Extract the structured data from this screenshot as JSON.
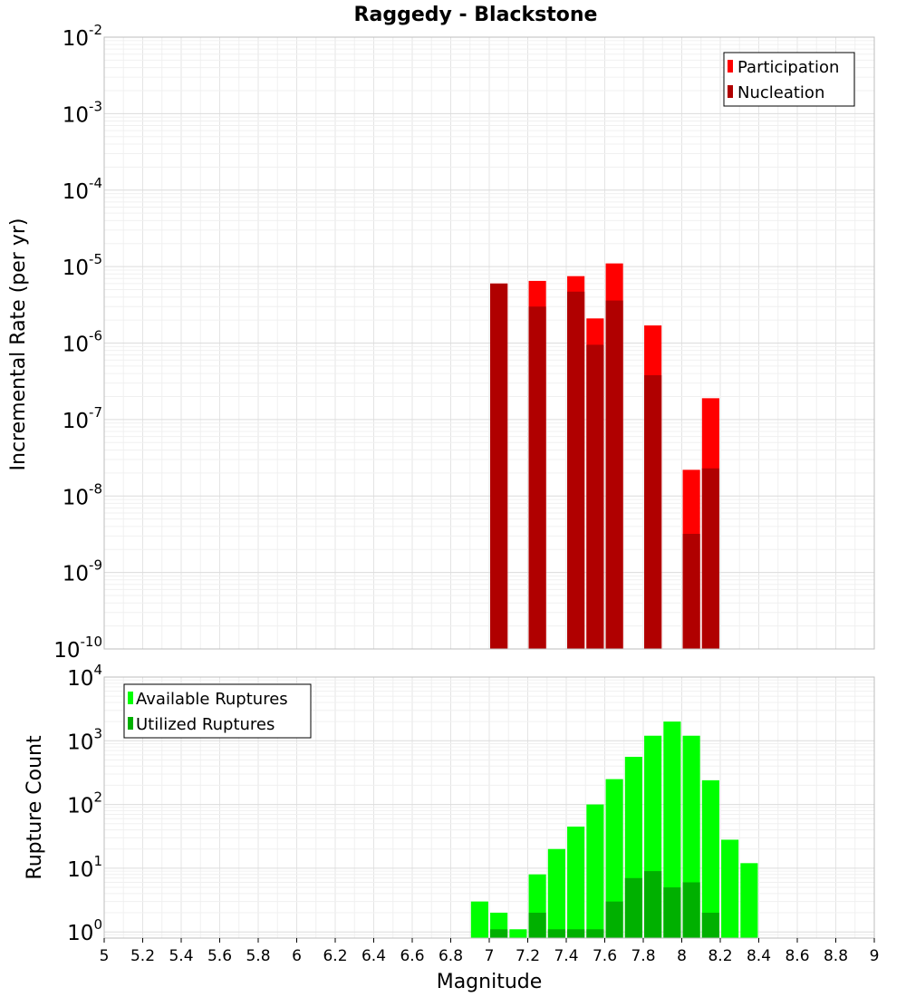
{
  "chart_data": [
    {
      "type": "bar",
      "title": "Raggedy - Blackstone",
      "xlabel": "",
      "ylabel": "Incremental Rate (per yr)",
      "yscale": "log",
      "ylim": [
        1e-10,
        0.01
      ],
      "xlim": [
        5,
        9
      ],
      "y_ticks": [
        {
          "base": "10",
          "exp": "-10",
          "value": 1e-10
        },
        {
          "base": "10",
          "exp": "-9",
          "value": 1e-09
        },
        {
          "base": "10",
          "exp": "-8",
          "value": 1e-08
        },
        {
          "base": "10",
          "exp": "-7",
          "value": 1e-07
        },
        {
          "base": "10",
          "exp": "-6",
          "value": 1e-06
        },
        {
          "base": "10",
          "exp": "-5",
          "value": 1e-05
        },
        {
          "base": "10",
          "exp": "-4",
          "value": 0.0001
        },
        {
          "base": "10",
          "exp": "-3",
          "value": 0.001
        },
        {
          "base": "10",
          "exp": "-2",
          "value": 0.01
        }
      ],
      "bar_width": 0.09,
      "legend": {
        "position": "top-right"
      },
      "series": [
        {
          "name": "Participation",
          "color": "#ff0000",
          "points": [
            {
              "x": 7.05,
              "y": 6e-06
            },
            {
              "x": 7.25,
              "y": 6.5e-06
            },
            {
              "x": 7.45,
              "y": 7.5e-06
            },
            {
              "x": 7.55,
              "y": 2.1e-06
            },
            {
              "x": 7.65,
              "y": 1.1e-05
            },
            {
              "x": 7.85,
              "y": 1.7e-06
            },
            {
              "x": 8.05,
              "y": 2.2e-08
            },
            {
              "x": 8.15,
              "y": 1.9e-07
            }
          ]
        },
        {
          "name": "Nucleation",
          "color": "#b00000",
          "points": [
            {
              "x": 7.05,
              "y": 6e-06
            },
            {
              "x": 7.25,
              "y": 3e-06
            },
            {
              "x": 7.45,
              "y": 4.7e-06
            },
            {
              "x": 7.55,
              "y": 9.5e-07
            },
            {
              "x": 7.65,
              "y": 3.6e-06
            },
            {
              "x": 7.85,
              "y": 3.8e-07
            },
            {
              "x": 8.05,
              "y": 3.2e-09
            },
            {
              "x": 8.15,
              "y": 2.3e-08
            }
          ]
        }
      ]
    },
    {
      "type": "bar",
      "title": "",
      "xlabel": "Magnitude",
      "ylabel": "Rupture Count",
      "yscale": "log",
      "ylim": [
        0.8,
        10000
      ],
      "xlim": [
        5,
        9
      ],
      "x_ticks": [
        "5",
        "5.2",
        "5.4",
        "5.6",
        "5.8",
        "6",
        "6.2",
        "6.4",
        "6.6",
        "6.8",
        "7",
        "7.2",
        "7.4",
        "7.6",
        "7.8",
        "8",
        "8.2",
        "8.4",
        "8.6",
        "8.8",
        "9"
      ],
      "y_ticks": [
        {
          "base": "10",
          "exp": "0",
          "value": 1
        },
        {
          "base": "10",
          "exp": "1",
          "value": 10
        },
        {
          "base": "10",
          "exp": "2",
          "value": 100
        },
        {
          "base": "10",
          "exp": "3",
          "value": 1000
        },
        {
          "base": "10",
          "exp": "4",
          "value": 10000
        }
      ],
      "bar_width": 0.09,
      "legend": {
        "position": "top-left"
      },
      "series": [
        {
          "name": "Available Ruptures",
          "color": "#00ff00",
          "points": [
            {
              "x": 6.95,
              "y": 3
            },
            {
              "x": 7.05,
              "y": 2
            },
            {
              "x": 7.15,
              "y": 1.1
            },
            {
              "x": 7.25,
              "y": 8
            },
            {
              "x": 7.35,
              "y": 20
            },
            {
              "x": 7.45,
              "y": 45
            },
            {
              "x": 7.55,
              "y": 100
            },
            {
              "x": 7.65,
              "y": 250
            },
            {
              "x": 7.75,
              "y": 560
            },
            {
              "x": 7.85,
              "y": 1200
            },
            {
              "x": 7.95,
              "y": 2000
            },
            {
              "x": 8.05,
              "y": 1200
            },
            {
              "x": 8.15,
              "y": 240
            },
            {
              "x": 8.25,
              "y": 28
            },
            {
              "x": 8.35,
              "y": 12
            }
          ]
        },
        {
          "name": "Utilized Ruptures",
          "color": "#00b000",
          "points": [
            {
              "x": 7.05,
              "y": 1.1
            },
            {
              "x": 7.25,
              "y": 2
            },
            {
              "x": 7.35,
              "y": 1.1
            },
            {
              "x": 7.45,
              "y": 1.1
            },
            {
              "x": 7.55,
              "y": 1.1
            },
            {
              "x": 7.65,
              "y": 3
            },
            {
              "x": 7.75,
              "y": 7
            },
            {
              "x": 7.85,
              "y": 9
            },
            {
              "x": 7.95,
              "y": 5
            },
            {
              "x": 8.05,
              "y": 6
            },
            {
              "x": 8.15,
              "y": 2
            }
          ]
        }
      ]
    }
  ]
}
